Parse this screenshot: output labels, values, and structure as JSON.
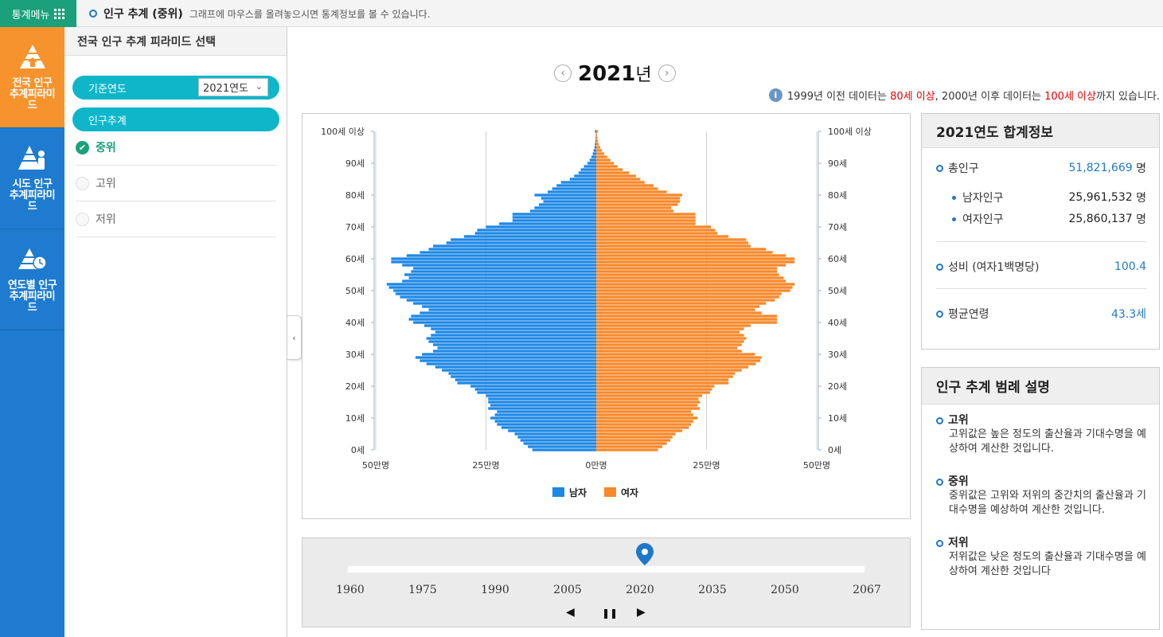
{
  "topbar": {
    "menu_label": "통계메뉴",
    "page_title": "인구 추계 (중위)",
    "hint": "그래프에 마우스를 올려놓으시면 통계정보를 볼 수 있습니다."
  },
  "nav": [
    {
      "label1": "전국 인구",
      "label2": "추계피라미",
      "label3": "드",
      "icon": "pyramid-country-icon",
      "active": true
    },
    {
      "label1": "시도 인구",
      "label2": "추계피라미",
      "label3": "드",
      "icon": "pyramid-region-icon",
      "active": false
    },
    {
      "label1": "연도별 인구",
      "label2": "추계피라미",
      "label3": "드",
      "icon": "pyramid-year-icon",
      "active": false
    }
  ],
  "panel": {
    "title": "전국 인구 추계 피라미드 선택",
    "year_label": "기준연도",
    "year_value": "2021연도",
    "section_label": "인구추계",
    "options": [
      {
        "label": "중위",
        "selected": true
      },
      {
        "label": "고위",
        "selected": false
      },
      {
        "label": "저위",
        "selected": false
      }
    ]
  },
  "year_header": {
    "year": "2021",
    "unit": "년"
  },
  "note": {
    "p1": "1999년 이전 데이터는 ",
    "r1": "80세 이상",
    "p2": ", 2000년 이후 데이터는 ",
    "r2": "100세 이상",
    "p3": "까지 있습니다."
  },
  "colors": {
    "male": "#1e88e5",
    "female": "#f7892b",
    "accent": "#1e78c8",
    "nav": "#1e7bd0",
    "nav_active": "#f7932d"
  },
  "chart_data": {
    "type": "bar",
    "orientation": "horizontal-pyramid",
    "x_tick_labels": [
      "50만명",
      "25만명",
      "0만명",
      "25만명",
      "50만명"
    ],
    "x_range": [
      -500000,
      500000
    ],
    "y_tick_labels": [
      "0세",
      "10세",
      "20세",
      "30세",
      "40세",
      "50세",
      "60세",
      "70세",
      "80세",
      "90세",
      "100세 이상"
    ],
    "legend": [
      "남자",
      "여자"
    ],
    "ages": [
      0,
      1,
      2,
      3,
      4,
      5,
      6,
      7,
      8,
      9,
      10,
      11,
      12,
      13,
      14,
      15,
      16,
      17,
      18,
      19,
      20,
      21,
      22,
      23,
      24,
      25,
      26,
      27,
      28,
      29,
      30,
      31,
      32,
      33,
      34,
      35,
      36,
      37,
      38,
      39,
      40,
      41,
      42,
      43,
      44,
      45,
      46,
      47,
      48,
      49,
      50,
      51,
      52,
      53,
      54,
      55,
      56,
      57,
      58,
      59,
      60,
      61,
      62,
      63,
      64,
      65,
      66,
      67,
      68,
      69,
      70,
      71,
      72,
      73,
      74,
      75,
      76,
      77,
      78,
      79,
      80,
      81,
      82,
      83,
      84,
      85,
      86,
      87,
      88,
      89,
      90,
      91,
      92,
      93,
      94,
      95,
      96,
      97,
      98,
      99,
      100
    ],
    "series": [
      {
        "name": "남자",
        "values": [
          145000,
          155000,
          165000,
          172000,
          178000,
          185000,
          200000,
          215000,
          225000,
          230000,
          240000,
          230000,
          225000,
          245000,
          240000,
          245000,
          245000,
          250000,
          270000,
          275000,
          285000,
          315000,
          320000,
          330000,
          335000,
          350000,
          365000,
          385000,
          400000,
          410000,
          395000,
          370000,
          360000,
          370000,
          380000,
          385000,
          375000,
          365000,
          375000,
          390000,
          415000,
          425000,
          420000,
          400000,
          380000,
          395000,
          415000,
          430000,
          445000,
          455000,
          460000,
          470000,
          475000,
          440000,
          425000,
          435000,
          420000,
          415000,
          440000,
          465000,
          465000,
          430000,
          400000,
          380000,
          370000,
          340000,
          330000,
          300000,
          275000,
          270000,
          250000,
          220000,
          190000,
          190000,
          190000,
          150000,
          140000,
          130000,
          120000,
          125000,
          140000,
          110000,
          100000,
          90000,
          80000,
          60000,
          50000,
          40000,
          35000,
          28000,
          20000,
          15000,
          11000,
          8000,
          6000,
          4000,
          3000,
          2000,
          1500,
          1000,
          3000
        ]
      },
      {
        "name": "여자",
        "values": [
          140000,
          150000,
          160000,
          168000,
          173000,
          180000,
          195000,
          210000,
          215000,
          220000,
          230000,
          220000,
          215000,
          235000,
          230000,
          235000,
          232000,
          240000,
          258000,
          262000,
          268000,
          300000,
          300000,
          310000,
          315000,
          330000,
          345000,
          362000,
          372000,
          375000,
          360000,
          330000,
          320000,
          330000,
          335000,
          340000,
          335000,
          325000,
          335000,
          350000,
          410000,
          410000,
          410000,
          375000,
          360000,
          370000,
          385000,
          405000,
          415000,
          420000,
          440000,
          445000,
          450000,
          430000,
          425000,
          415000,
          410000,
          410000,
          430000,
          450000,
          450000,
          430000,
          400000,
          385000,
          350000,
          345000,
          340000,
          300000,
          275000,
          270000,
          260000,
          225000,
          225000,
          225000,
          225000,
          175000,
          170000,
          185000,
          190000,
          190000,
          195000,
          160000,
          140000,
          130000,
          110000,
          100000,
          90000,
          75000,
          60000,
          48000,
          40000,
          32000,
          25000,
          18000,
          13000,
          9000,
          6000,
          4000,
          3000,
          2000,
          4000
        ]
      }
    ]
  },
  "timeline": {
    "years": [
      "1960",
      "1975",
      "1990",
      "2005",
      "2020",
      "2035",
      "2050",
      "2067"
    ],
    "current": 2021
  },
  "summary": {
    "title": "2021연도 합계정보",
    "total_label": "총인구",
    "total_value": "51,821,669",
    "unit_person": "명",
    "male_label": "남자인구",
    "male_value": "25,961,532",
    "female_label": "여자인구",
    "female_value": "25,860,137",
    "ratio_label": "성비 (여자1백명당)",
    "ratio_value": "100.4",
    "age_label": "평균연령",
    "age_value": "43.3세"
  },
  "legend_box": {
    "title": "인구 추계 범례 설명",
    "items": [
      {
        "title": "고위",
        "desc": "고위값은 높은 정도의 출산율과 기대수명을 예상하여 계산한 것입니다."
      },
      {
        "title": "중위",
        "desc": "중위값은 고위와 저위의 중간치의 출산율과 기대수명을 예상하여 계산한 것입니다."
      },
      {
        "title": "저위",
        "desc": "저위값은 낮은 정도의 출산율과 기대수명을 예상하여 계산한 것입니다"
      }
    ]
  }
}
